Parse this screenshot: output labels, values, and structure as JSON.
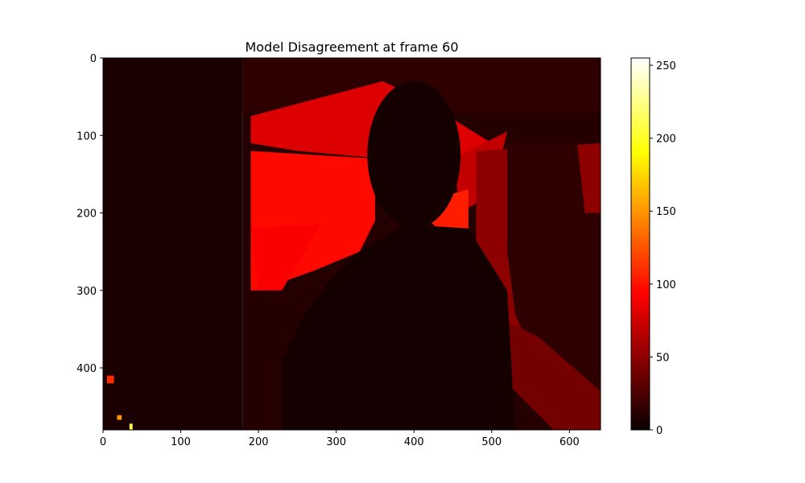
{
  "chart_data": {
    "type": "heatmap",
    "title": "Model Disagreement at frame 60",
    "xlabel": "",
    "ylabel": "",
    "xlim": [
      0,
      640
    ],
    "ylim": [
      480,
      0
    ],
    "x_ticks": [
      0,
      100,
      200,
      300,
      400,
      500,
      600
    ],
    "y_ticks": [
      0,
      100,
      200,
      300,
      400
    ],
    "colormap": "hot",
    "colorbar": {
      "vmin": 0,
      "vmax": 255,
      "ticks": [
        0,
        50,
        100,
        150,
        200,
        250
      ]
    },
    "grid": false,
    "colors": {
      "black": "#000000",
      "red": "#ff0000",
      "yellow": "#ffff00",
      "white": "#ffffff"
    },
    "regions": [
      {
        "name": "background-left",
        "value": 6,
        "kind": "rect",
        "x0": 0,
        "y0": 0,
        "x1": 180,
        "y1": 480
      },
      {
        "name": "background-right",
        "value": 10,
        "kind": "rect",
        "x0": 180,
        "y0": 0,
        "x1": 640,
        "y1": 480
      },
      {
        "name": "wall-dark-top",
        "value": 14,
        "kind": "rect",
        "x0": 180,
        "y0": 0,
        "x1": 640,
        "y1": 70
      },
      {
        "name": "red-panel-upper",
        "value": 80,
        "kind": "poly",
        "pts": [
          [
            190,
            75
          ],
          [
            360,
            30
          ],
          [
            420,
            60
          ],
          [
            500,
            110
          ],
          [
            520,
            140
          ],
          [
            470,
            160
          ],
          [
            360,
            130
          ],
          [
            250,
            120
          ],
          [
            190,
            110
          ]
        ]
      },
      {
        "name": "red-panel-left",
        "value": 96,
        "kind": "poly",
        "pts": [
          [
            190,
            120
          ],
          [
            350,
            130
          ],
          [
            350,
            210
          ],
          [
            330,
            250
          ],
          [
            270,
            275
          ],
          [
            200,
            300
          ],
          [
            190,
            300
          ]
        ]
      },
      {
        "name": "red-lower-left",
        "value": 92,
        "kind": "poly",
        "pts": [
          [
            190,
            220
          ],
          [
            280,
            215
          ],
          [
            230,
            300
          ],
          [
            200,
            300
          ]
        ]
      },
      {
        "name": "red-right-upper",
        "value": 70,
        "kind": "poly",
        "pts": [
          [
            450,
            130
          ],
          [
            520,
            95
          ],
          [
            500,
            175
          ],
          [
            460,
            200
          ]
        ]
      },
      {
        "name": "red-right-shoulder",
        "value": 104,
        "kind": "poly",
        "pts": [
          [
            430,
            180
          ],
          [
            470,
            170
          ],
          [
            470,
            255
          ],
          [
            440,
            230
          ],
          [
            420,
            210
          ]
        ]
      },
      {
        "name": "dark-red-right",
        "value": 50,
        "kind": "poly",
        "pts": [
          [
            480,
            120
          ],
          [
            640,
            110
          ],
          [
            640,
            480
          ],
          [
            620,
            480
          ],
          [
            580,
            420
          ],
          [
            520,
            360
          ],
          [
            490,
            320
          ],
          [
            480,
            250
          ]
        ]
      },
      {
        "name": "right-door-dark",
        "value": 14,
        "kind": "poly",
        "pts": [
          [
            520,
            110
          ],
          [
            610,
            110
          ],
          [
            620,
            200
          ],
          [
            640,
            200
          ],
          [
            640,
            480
          ],
          [
            560,
            400
          ],
          [
            530,
            330
          ],
          [
            520,
            250
          ]
        ]
      },
      {
        "name": "lower-right-dark",
        "value": 40,
        "kind": "poly",
        "pts": [
          [
            500,
            330
          ],
          [
            560,
            360
          ],
          [
            640,
            430
          ],
          [
            640,
            480
          ],
          [
            580,
            480
          ],
          [
            520,
            420
          ]
        ]
      },
      {
        "name": "person-head",
        "value": 4,
        "kind": "ellipse",
        "cx": 400,
        "cy": 125,
        "rx": 60,
        "ry": 95
      },
      {
        "name": "person-body",
        "value": 4,
        "kind": "poly",
        "pts": [
          [
            330,
            250
          ],
          [
            390,
            215
          ],
          [
            470,
            220
          ],
          [
            520,
            300
          ],
          [
            530,
            480
          ],
          [
            230,
            480
          ],
          [
            230,
            390
          ],
          [
            260,
            330
          ],
          [
            290,
            290
          ]
        ]
      },
      {
        "name": "hotspot-1",
        "value": 110,
        "kind": "rect",
        "x0": 5,
        "y0": 410,
        "x1": 14,
        "y1": 420
      },
      {
        "name": "hotspot-2",
        "value": 150,
        "kind": "rect",
        "x0": 18,
        "y0": 461,
        "x1": 24,
        "y1": 467
      },
      {
        "name": "hotspot-3",
        "value": 210,
        "kind": "rect",
        "x0": 34,
        "y0": 472,
        "x1": 38,
        "y1": 480
      }
    ]
  }
}
